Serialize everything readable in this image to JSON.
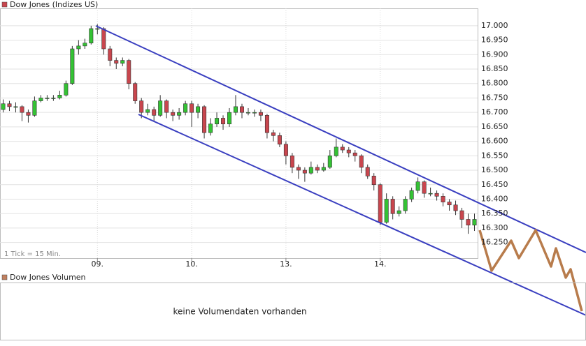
{
  "chart_data": {
    "type": "candlestick",
    "title": "Dow Jones (Indizes US)",
    "note": "1 Tick = 15 Min.",
    "up_color": "#34c234",
    "down_color": "#c9464e",
    "open": [
      16710,
      16730,
      16720,
      16720,
      16700,
      16690,
      16740,
      16750,
      16750,
      16750,
      16760,
      16800,
      16920,
      16930,
      16940,
      16990,
      16990,
      16920,
      16880,
      16870,
      16880,
      16800,
      16740,
      16700,
      16710,
      16690,
      16740,
      16700,
      16690,
      16700,
      16730,
      16700,
      16720,
      16630,
      16660,
      16680,
      16660,
      16700,
      16720,
      16700,
      16700,
      16700,
      16690,
      16630,
      16620,
      16590,
      16550,
      16510,
      16500,
      16490,
      16510,
      16500,
      16510,
      16550,
      16580,
      16570,
      16560,
      16550,
      16510,
      16480,
      16450,
      16320,
      16400,
      16350,
      16360,
      16400,
      16430,
      16460,
      16420,
      16420,
      16410,
      16390,
      16380,
      16360,
      16330,
      16310
    ],
    "high": [
      16745,
      16740,
      16735,
      16725,
      16710,
      16755,
      16760,
      16760,
      16760,
      16775,
      16810,
      16930,
      16950,
      16955,
      17000,
      17005,
      16995,
      16930,
      16890,
      16890,
      16885,
      16805,
      16750,
      16730,
      16720,
      16760,
      16745,
      16710,
      16715,
      16740,
      16740,
      16730,
      16725,
      16680,
      16700,
      16690,
      16715,
      16760,
      16730,
      16715,
      16710,
      16710,
      16695,
      16640,
      16630,
      16600,
      16560,
      16520,
      16510,
      16530,
      16520,
      16525,
      16570,
      16610,
      16590,
      16580,
      16570,
      16555,
      16520,
      16490,
      16455,
      16420,
      16410,
      16375,
      16410,
      16440,
      16475,
      16465,
      16440,
      16430,
      16420,
      16400,
      16395,
      16370,
      16350,
      16350
    ],
    "low": [
      16700,
      16705,
      16700,
      16670,
      16665,
      16685,
      16735,
      16740,
      16740,
      16745,
      16755,
      16795,
      16900,
      16920,
      16935,
      16970,
      16900,
      16860,
      16850,
      16860,
      16780,
      16730,
      16680,
      16690,
      16670,
      16685,
      16680,
      16670,
      16675,
      16690,
      16650,
      16680,
      16610,
      16620,
      16650,
      16640,
      16650,
      16690,
      16680,
      16690,
      16685,
      16670,
      16610,
      16600,
      16580,
      16520,
      16490,
      16470,
      16460,
      16485,
      16490,
      16495,
      16505,
      16545,
      16560,
      16545,
      16530,
      16490,
      16470,
      16430,
      16310,
      16315,
      16330,
      16340,
      16350,
      16390,
      16420,
      16405,
      16410,
      16395,
      16375,
      16360,
      16345,
      16300,
      16280,
      16290
    ],
    "close": [
      16730,
      16720,
      16720,
      16700,
      16690,
      16740,
      16750,
      16750,
      16750,
      16760,
      16800,
      16920,
      16930,
      16940,
      16990,
      16990,
      16920,
      16880,
      16870,
      16880,
      16800,
      16740,
      16700,
      16710,
      16690,
      16740,
      16700,
      16690,
      16700,
      16730,
      16700,
      16720,
      16630,
      16660,
      16680,
      16660,
      16700,
      16720,
      16700,
      16700,
      16700,
      16690,
      16630,
      16620,
      16590,
      16550,
      16510,
      16500,
      16490,
      16510,
      16500,
      16510,
      16550,
      16580,
      16570,
      16560,
      16550,
      16510,
      16480,
      16450,
      16320,
      16400,
      16350,
      16360,
      16400,
      16430,
      16460,
      16420,
      16420,
      16410,
      16390,
      16380,
      16360,
      16330,
      16310,
      16330
    ],
    "xlim": [
      -0.5,
      75.5
    ],
    "xticks": [
      {
        "value": 15,
        "label": "09."
      },
      {
        "value": 30,
        "label": "10."
      },
      {
        "value": 45,
        "label": "13."
      },
      {
        "value": 60,
        "label": "14."
      }
    ],
    "ylim": [
      16196,
      17060
    ],
    "yticks": [
      {
        "value": 16250,
        "label": "16.250"
      },
      {
        "value": 16300,
        "label": "16.300"
      },
      {
        "value": 16350,
        "label": "16.350"
      },
      {
        "value": 16400,
        "label": "16.400"
      },
      {
        "value": 16450,
        "label": "16.450"
      },
      {
        "value": 16500,
        "label": "16.500"
      },
      {
        "value": 16550,
        "label": "16.550"
      },
      {
        "value": 16600,
        "label": "16.600"
      },
      {
        "value": 16650,
        "label": "16.650"
      },
      {
        "value": 16700,
        "label": "16.700"
      },
      {
        "value": 16750,
        "label": "16.750"
      },
      {
        "value": 16800,
        "label": "16.800"
      },
      {
        "value": 16850,
        "label": "16.850"
      },
      {
        "value": 16900,
        "label": "16.900"
      },
      {
        "value": 16950,
        "label": "16.950"
      },
      {
        "value": 17000,
        "label": "17.000"
      }
    ],
    "grid": true
  },
  "volume_panel": {
    "title": "Dow Jones Volumen",
    "message": "keine Volumendaten vorhanden"
  }
}
